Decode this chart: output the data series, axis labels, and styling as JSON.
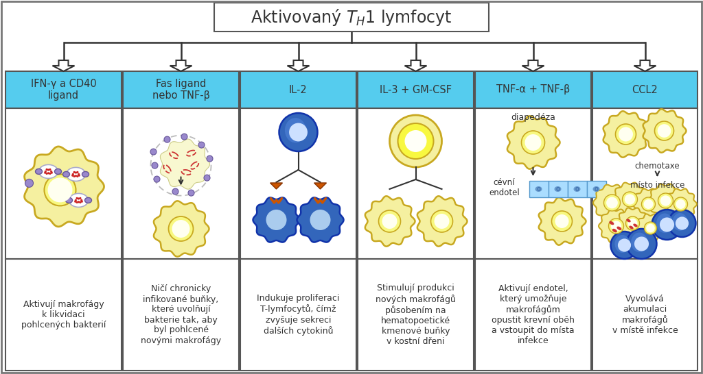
{
  "bg_color": "#ffffff",
  "header_bg": "#55ccee",
  "border_color": "#555555",
  "dark_gray": "#333333",
  "columns": [
    {
      "header": "IFN-γ a CD40\nligand",
      "description": "Aktivují makrofágy\nk likvidaci\npohlcených bakterií"
    },
    {
      "header": "Fas ligand\nnebo TNF-β",
      "description": "Ničí chronicky\ninfikované buňky,\nkteré uvolňují\nbakterie tak, aby\nbyl pohlcené\nnovými makrofágy"
    },
    {
      "header": "IL-2",
      "description": "Indukuje proliferaci\nT-lymfocytů, čímž\nzvyšuje sekreci\ndalších cytokinů"
    },
    {
      "header": "IL-3 + GM-CSF",
      "description": "Stimulují produkci\nnových makrofágů\npůsobením na\nhematopoetické\nkmenové buňky\nv kostní dřeni"
    },
    {
      "header": "TNF-α + TNF-β",
      "description": "Aktivují endotel,\nkterý umožňuje\nmakrofágům\nopustit krevní oběh\na vstoupit do místa\ninfekce"
    },
    {
      "header": "CCL2",
      "description": "Vyvolává\nakumulaci\nmakrofágů\nv místě infekce"
    }
  ]
}
